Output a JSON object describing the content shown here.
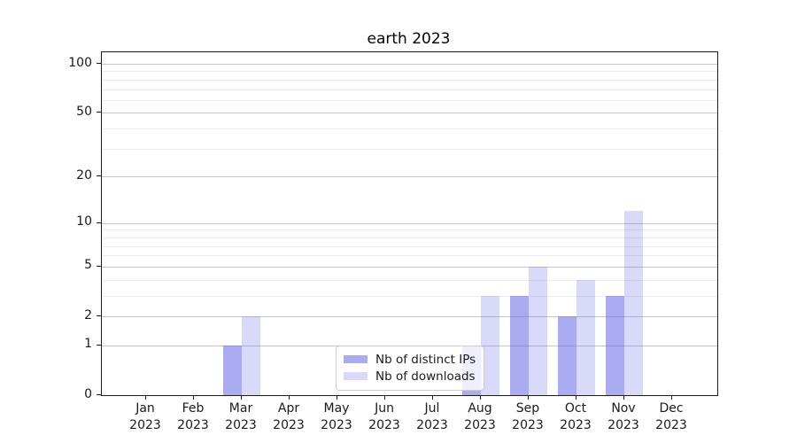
{
  "title": "earth 2023",
  "chart_data": {
    "type": "bar",
    "title": "earth 2023",
    "categories": [
      "Jan 2023",
      "Feb 2023",
      "Mar 2023",
      "Apr 2023",
      "May 2023",
      "Jun 2023",
      "Jul 2023",
      "Aug 2023",
      "Sep 2023",
      "Oct 2023",
      "Nov 2023",
      "Dec 2023"
    ],
    "series": [
      {
        "name": "Nb of distinct IPs",
        "color": "rgba(102,102,232,0.55)",
        "values": [
          0,
          0,
          1,
          0,
          0,
          0,
          0,
          1,
          3,
          2,
          3,
          0
        ]
      },
      {
        "name": "Nb of downloads",
        "color": "rgba(102,102,232,0.25)",
        "values": [
          0,
          0,
          2,
          0,
          0,
          0,
          0,
          3,
          5,
          4,
          12,
          0
        ]
      }
    ],
    "xlabel": "",
    "ylabel": "",
    "ylim": [
      0,
      100
    ],
    "scale": "log1p",
    "y_major_ticks": [
      0,
      1,
      2,
      5,
      10,
      20,
      50,
      100
    ],
    "y_minor_ticks": [
      3,
      4,
      6,
      7,
      8,
      9,
      30,
      40,
      60,
      70,
      80,
      90
    ],
    "grid": "horizontal",
    "legend_position": "lower center"
  },
  "colors": {
    "major_grid": "#c6c6c6",
    "minor_grid": "#ececec",
    "axis": "#1c1c1c",
    "background": "#ffffff"
  }
}
